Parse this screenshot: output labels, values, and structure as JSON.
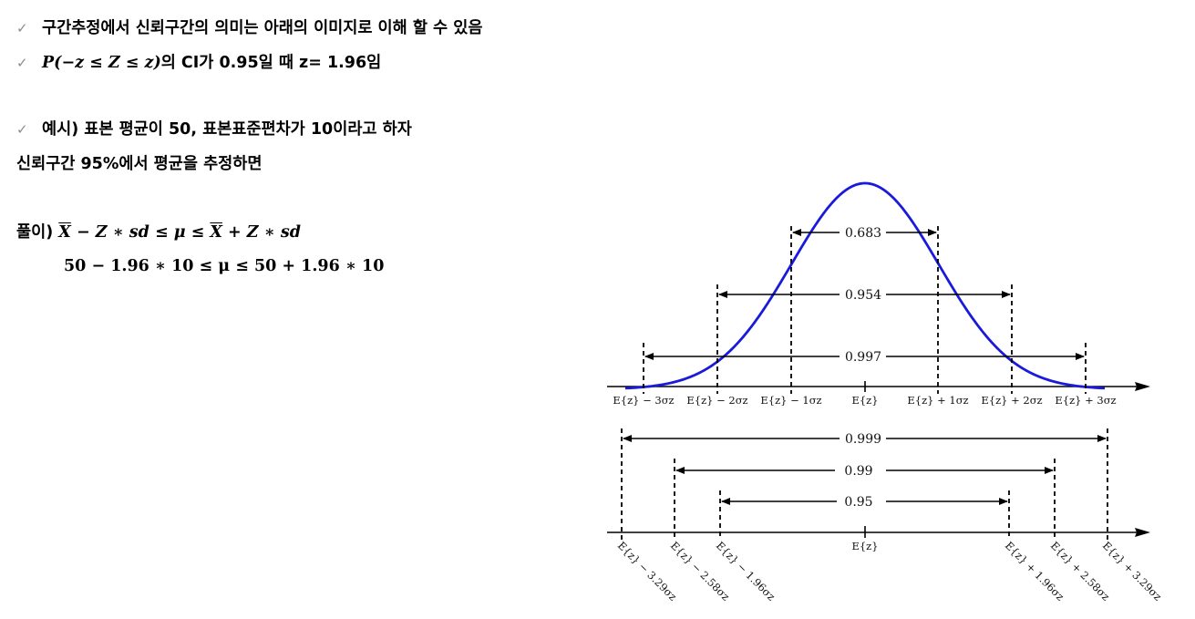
{
  "bullets": {
    "check": "✓",
    "line1": "구간추정에서 신뢰구간의 의미는 아래의 이미지로 이해 할 수 있음",
    "line2_math": "P(−z ≤ Z ≤ z)",
    "line2_text": "의 CI가 0.95일 때  z= 1.96임",
    "line3": "예시)  표본 평균이 50, 표본표준편차가 10이라고 하자",
    "line4": "신뢰구간 95%에서 평균을 추정하면"
  },
  "solution": {
    "label": "풀이)",
    "formula_xbar1": "X",
    "formula_mid": " − Z ∗ sd ≤ μ ≤ ",
    "formula_xbar2": "X",
    "formula_end": " + Z ∗ sd",
    "formula2": "50 − 1.96 ∗ 10 ≤ μ ≤ 50 + 1.96 ∗ 10"
  },
  "figure": {
    "curve_color": "#1a1adb",
    "top_intervals": [
      "0.683",
      "0.954",
      "0.997"
    ],
    "top_ticks": [
      "E{z} − 3σz",
      "E{z} − 2σz",
      "E{z} − 1σz",
      "E{z}",
      "E{z} + 1σz",
      "E{z} + 2σz",
      "E{z} + 3σz"
    ],
    "bottom_intervals": [
      "0.999",
      "0.99",
      "0.95"
    ],
    "bottom_center": "E{z}",
    "bottom_ticks": [
      "E{z} − 3.29σz",
      "E{z} − 2.58σz",
      "E{z} − 1.96σz",
      "E{z} + 1.96σz",
      "E{z} + 2.58σz",
      "E{z} + 3.29σz"
    ]
  }
}
